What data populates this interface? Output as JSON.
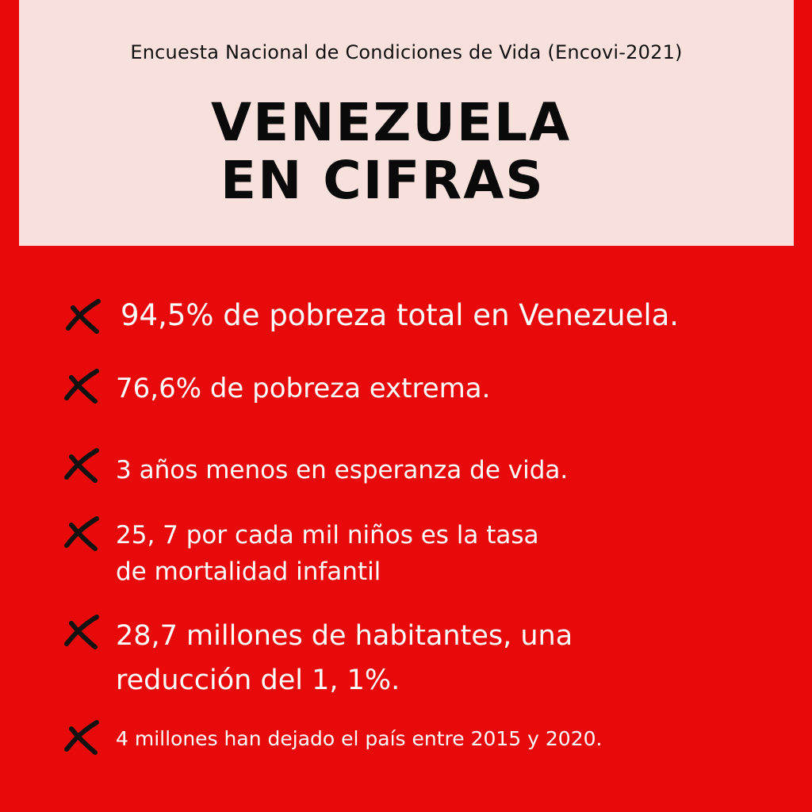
{
  "header": {
    "subtitle": "Encuesta Nacional de Condiciones de Vida (Encovi-2021)",
    "title_line1": "VENEZUELA",
    "title_line2": "EN CIFRAS"
  },
  "colors": {
    "background": "#e8090a",
    "header_background": "#f8e1dc",
    "text_light": "#ffffff",
    "text_dark": "#0a0a0a"
  },
  "items": [
    {
      "icon": "x-mark-icon",
      "lines": [
        "94,5% de pobreza total en Venezuela."
      ]
    },
    {
      "icon": "x-mark-icon",
      "lines": [
        "76,6% de pobreza extrema."
      ]
    },
    {
      "icon": "x-mark-icon",
      "lines": [
        "3 años menos en esperanza de vida."
      ]
    },
    {
      "icon": "x-mark-icon",
      "lines": [
        "25, 7 por cada mil niños es la tasa",
        "de mortalidad infantil"
      ]
    },
    {
      "icon": "x-mark-icon",
      "lines": [
        "28,7 millones de habitantes, una",
        "reducción del 1, 1%."
      ]
    },
    {
      "icon": "x-mark-icon",
      "lines": [
        "4 millones han dejado el país entre 2015 y 2020."
      ]
    }
  ]
}
